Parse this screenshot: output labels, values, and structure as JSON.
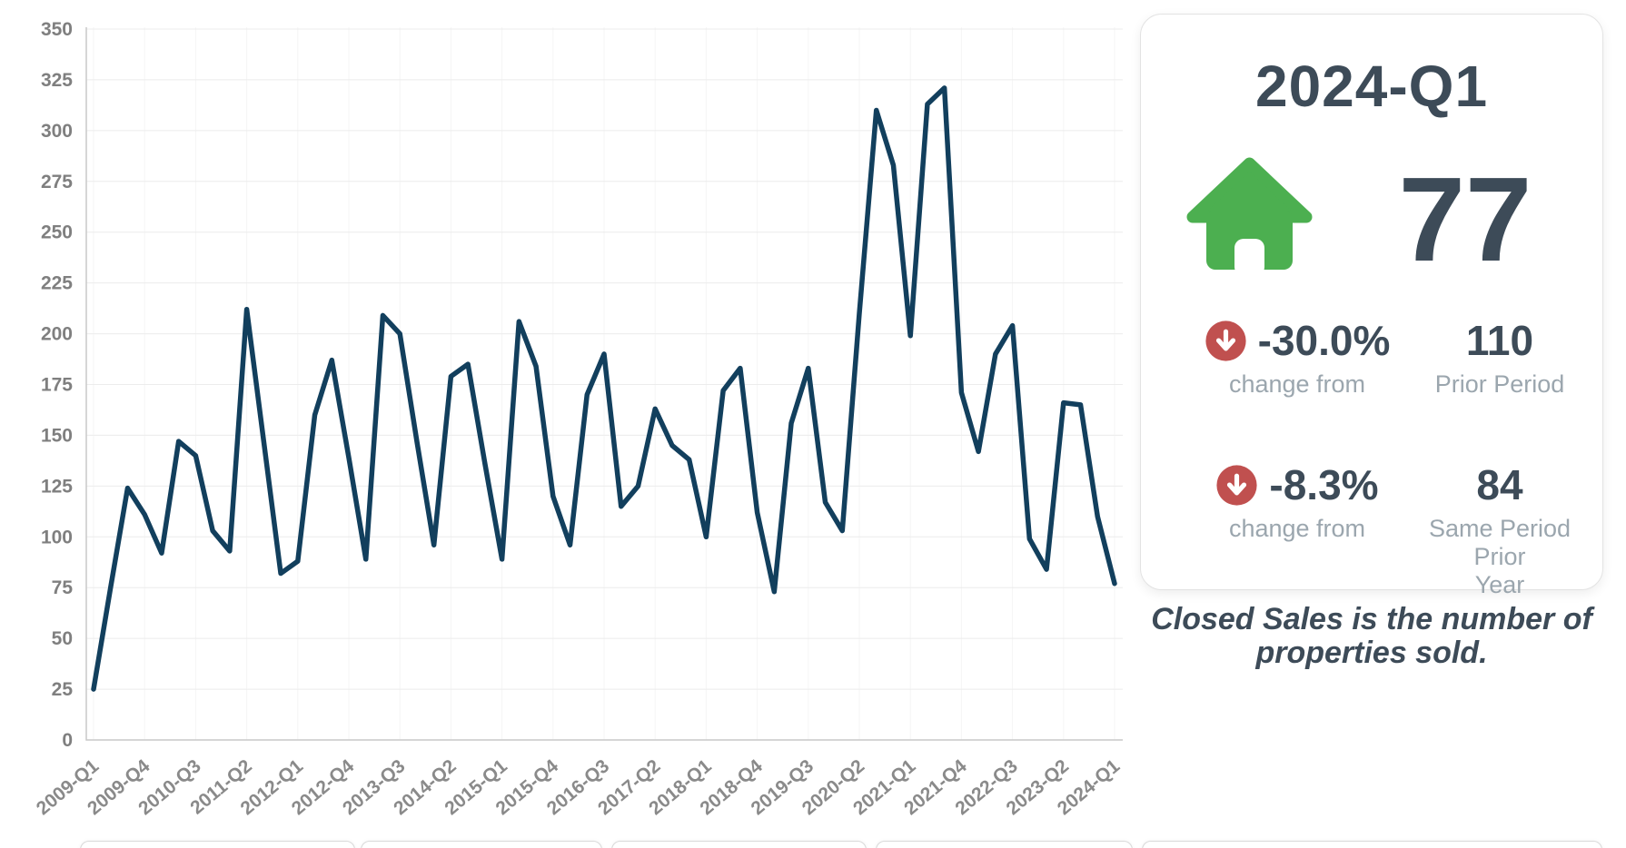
{
  "chart_data": {
    "type": "line",
    "title": "",
    "categories": [
      "2009-Q1",
      "2009-Q2",
      "2009-Q3",
      "2009-Q4",
      "2010-Q1",
      "2010-Q2",
      "2010-Q3",
      "2010-Q4",
      "2011-Q1",
      "2011-Q2",
      "2011-Q3",
      "2011-Q4",
      "2012-Q1",
      "2012-Q2",
      "2012-Q3",
      "2012-Q4",
      "2013-Q1",
      "2013-Q2",
      "2013-Q3",
      "2013-Q4",
      "2014-Q1",
      "2014-Q2",
      "2014-Q3",
      "2014-Q4",
      "2015-Q1",
      "2015-Q2",
      "2015-Q3",
      "2015-Q4",
      "2016-Q1",
      "2016-Q2",
      "2016-Q3",
      "2016-Q4",
      "2017-Q1",
      "2017-Q2",
      "2017-Q3",
      "2017-Q4",
      "2018-Q1",
      "2018-Q2",
      "2018-Q3",
      "2018-Q4",
      "2019-Q1",
      "2019-Q2",
      "2019-Q3",
      "2019-Q4",
      "2020-Q1",
      "2020-Q2",
      "2020-Q3",
      "2020-Q4",
      "2021-Q1",
      "2021-Q2",
      "2021-Q3",
      "2021-Q4",
      "2022-Q1",
      "2022-Q2",
      "2022-Q3",
      "2022-Q4",
      "2023-Q1",
      "2023-Q2",
      "2023-Q3",
      "2023-Q4",
      "2024-Q1"
    ],
    "values": [
      25,
      75,
      124,
      111,
      92,
      147,
      140,
      103,
      93,
      212,
      147,
      82,
      88,
      160,
      187,
      139,
      89,
      209,
      200,
      147,
      96,
      179,
      185,
      136,
      89,
      206,
      184,
      120,
      96,
      170,
      190,
      115,
      125,
      163,
      145,
      138,
      100,
      172,
      183,
      112,
      73,
      156,
      183,
      117,
      103,
      210,
      310,
      283,
      199,
      313,
      321,
      171,
      142,
      190,
      204,
      99,
      84,
      166,
      165,
      110,
      77
    ],
    "ylim": [
      0,
      350
    ],
    "ytick_step": 25,
    "x_label_every": 3,
    "visible_x_ticks": [
      "2009-Q1",
      "2009-Q4",
      "2010-Q3",
      "2011-Q2",
      "2012-Q1",
      "2012-Q4",
      "2013-Q3",
      "2014-Q2",
      "2015-Q1",
      "2015-Q4",
      "2016-Q3",
      "2017-Q2",
      "2018-Q1",
      "2018-Q4",
      "2019-Q3",
      "2020-Q2",
      "2021-Q1",
      "2021-Q4",
      "2022-Q3",
      "2023-Q2",
      "2024-Q1"
    ],
    "line_color": "#123f5d",
    "grid": true,
    "legend": "none"
  },
  "summary_card": {
    "title": "2024-Q1",
    "metric_value": "77",
    "house_icon_color": "#4caf50",
    "arrow_icon_color": "#c0504f",
    "text_color": "#3d4b58",
    "label_color": "#9ba6ae",
    "rows": [
      {
        "pct": "-30.0%",
        "caption": "change from",
        "value": "110",
        "label_line1": "Prior Period",
        "label_line2": ""
      },
      {
        "pct": "-8.3%",
        "caption": "change from",
        "value": "84",
        "label_line1": "Same Period Prior",
        "label_line2": "Year"
      }
    ],
    "note_line1": "Closed Sales is the number of",
    "note_line2": "properties sold."
  }
}
